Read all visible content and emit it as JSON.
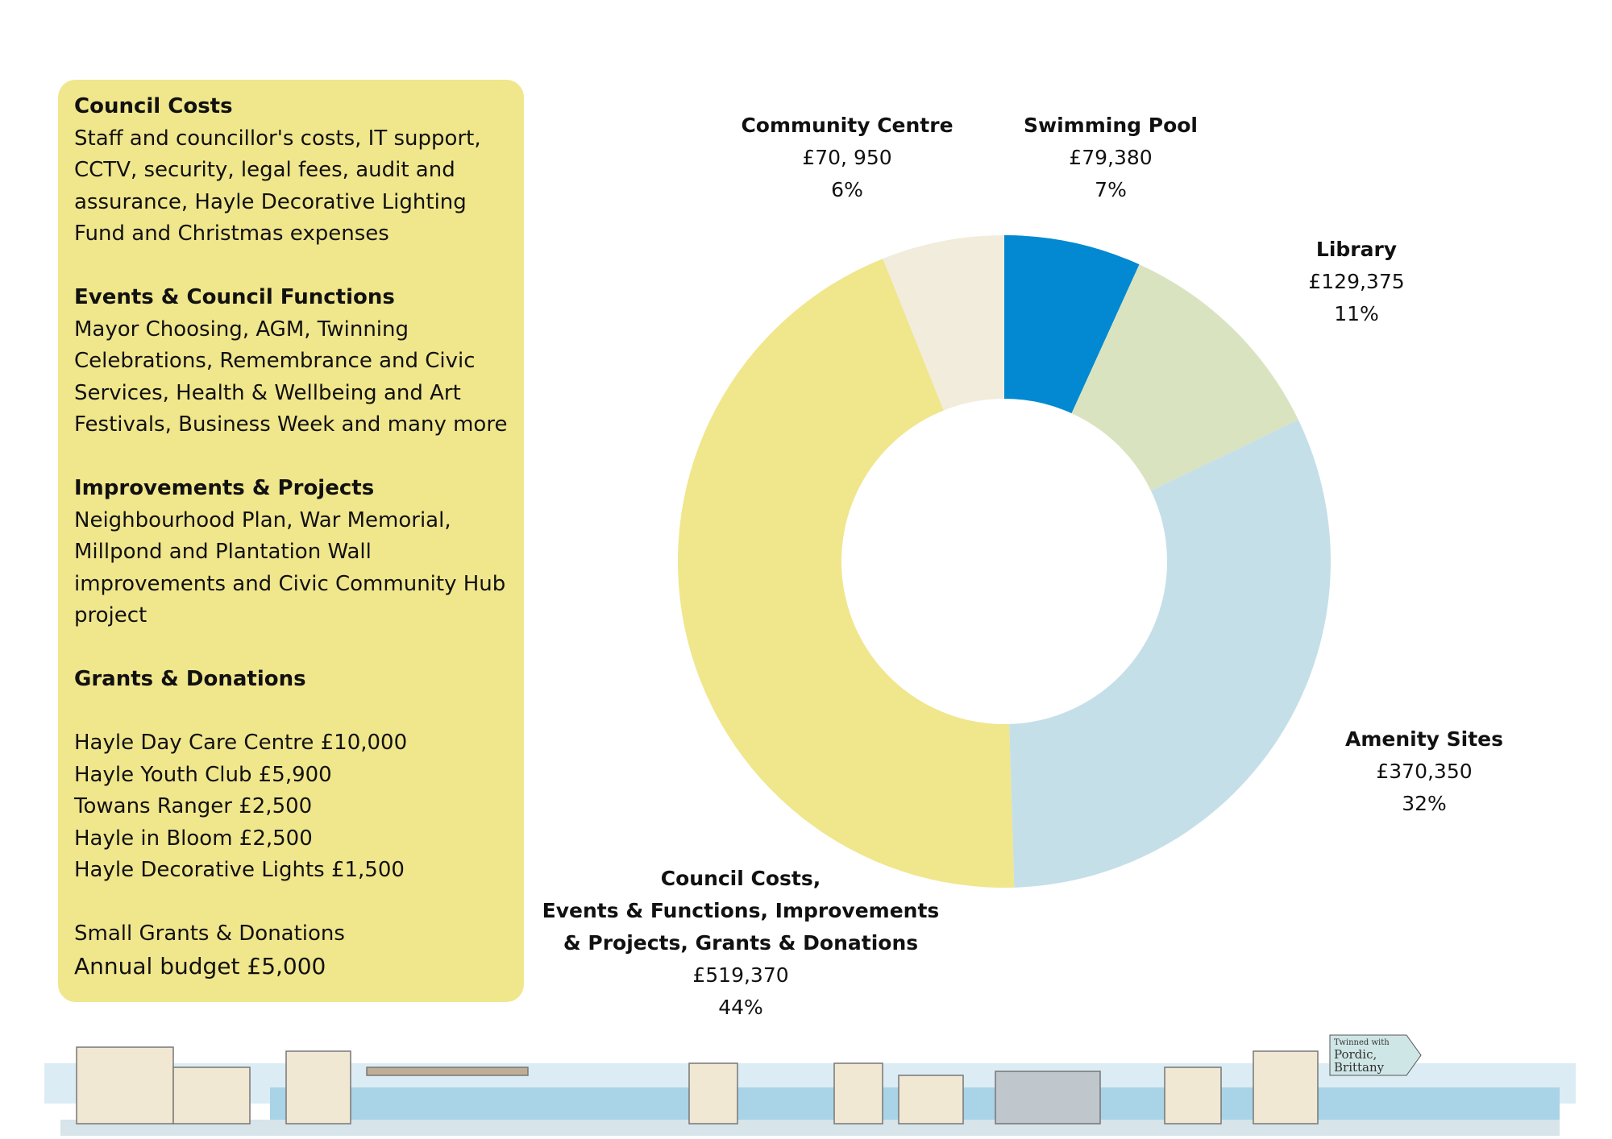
{
  "panel": {
    "sections": [
      {
        "heading": "Council Costs",
        "lines": [
          "Staff and councillor's costs, IT support,",
          "CCTV, security, legal fees, audit and",
          "assurance, Hayle Decorative Lighting",
          "Fund and Christmas expenses"
        ]
      },
      {
        "heading": "Events & Council Functions",
        "lines": [
          "Mayor Choosing, AGM, Twinning",
          "Celebrations, Remembrance and Civic",
          "Services, Health & Wellbeing and Art",
          "Festivals, Business Week and many more"
        ]
      },
      {
        "heading": "Improvements & Projects",
        "lines": [
          "Neighbourhood Plan, War Memorial,",
          "Millpond and Plantation Wall",
          "improvements and Civic Community Hub",
          "project"
        ]
      },
      {
        "heading": "Grants & Donations",
        "lines": []
      }
    ],
    "grants": [
      "Hayle Day Care Centre £10,000",
      "Hayle Youth Club £5,900",
      "Towans Ranger £2,500",
      "Hayle in Bloom £2,500",
      "Hayle Decorative Lights £1,500"
    ],
    "small_grants": "Small Grants & Donations",
    "annual_budget": "Annual budget £5,000"
  },
  "chart_data": {
    "type": "pie",
    "variant": "donut",
    "start": "top, clockwise",
    "slices": [
      {
        "name": "Swimming Pool",
        "label_lines": [
          "Swimming Pool"
        ],
        "value": 79380,
        "value_label": "£79,380",
        "percent_label": "7%",
        "color": "#0289d1"
      },
      {
        "name": "Library",
        "label_lines": [
          "Library"
        ],
        "value": 129375,
        "value_label": "£129,375",
        "percent_label": "11%",
        "color": "#d9e3c0"
      },
      {
        "name": "Amenity Sites",
        "label_lines": [
          "Amenity Sites"
        ],
        "value": 370350,
        "value_label": "£370,350",
        "percent_label": "32%",
        "color": "#c5dfe9"
      },
      {
        "name": "Council Costs, Events & Functions, Improvements & Projects, Grants & Donations",
        "label_lines": [
          "Council Costs,",
          "Events & Functions, Improvements",
          "& Projects, Grants & Donations"
        ],
        "value": 519370,
        "value_label": "£519,370",
        "percent_label": "44%",
        "color": "#f0e68c"
      },
      {
        "name": "Community Centre",
        "label_lines": [
          "Community Centre"
        ],
        "value": 70950,
        "value_label": "£70, 950",
        "percent_label": "6%",
        "color": "#f2ecdc"
      }
    ]
  },
  "footer": {
    "sign_lines": [
      "Twinned with",
      "Pordic,",
      "Brittany"
    ]
  }
}
